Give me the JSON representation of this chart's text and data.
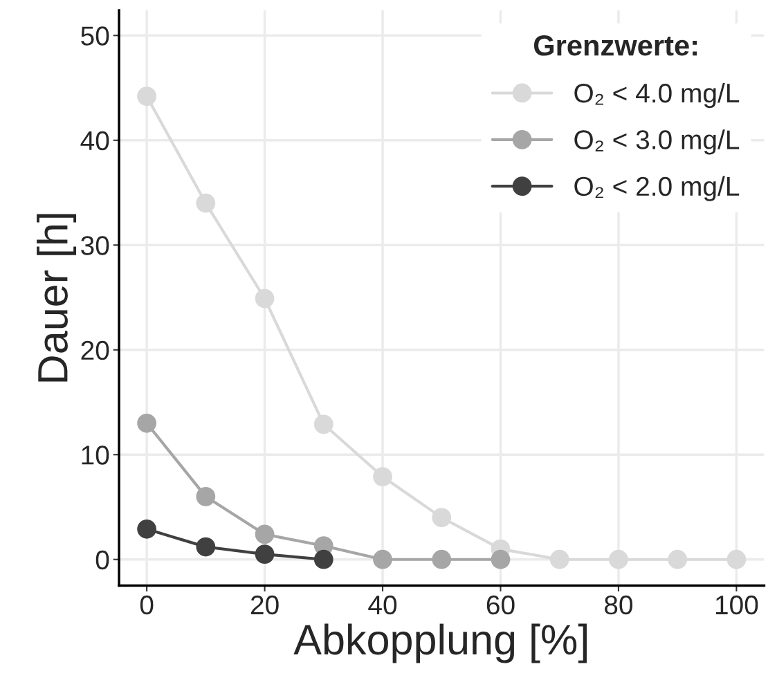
{
  "chart_data": {
    "type": "line",
    "xlabel": "Abkopplung [%]",
    "ylabel": "Dauer [h]",
    "legend_title": "Grenzwerte:",
    "xlim": [
      -4.7,
      104.7
    ],
    "xticks": [
      0,
      20,
      40,
      60,
      80,
      100
    ],
    "ylim": [
      -2.5,
      52.4
    ],
    "yticks": [
      0,
      10,
      20,
      30,
      40,
      50
    ],
    "grid": true,
    "legend": "top right",
    "marker": "circle",
    "line_style": "solid",
    "series": [
      {
        "name": "O₂ < 4.0 mg/L",
        "color": "#d9d9d9",
        "x": [
          0,
          10,
          20,
          30,
          40,
          50,
          60,
          70,
          80,
          90,
          100
        ],
        "values": [
          44.2,
          34.0,
          24.9,
          12.9,
          7.9,
          4.0,
          1.0,
          0,
          0,
          0,
          0
        ]
      },
      {
        "name": "O₂ < 3.0 mg/L",
        "color": "#a6a6a6",
        "x": [
          0,
          10,
          20,
          30,
          40,
          50,
          60
        ],
        "values": [
          13.0,
          6.0,
          2.4,
          1.3,
          0,
          0,
          0
        ]
      },
      {
        "name": "O₂ < 2.0 mg/L",
        "color": "#404040",
        "x": [
          0,
          10,
          20,
          30
        ],
        "values": [
          2.9,
          1.2,
          0.5,
          0
        ]
      }
    ]
  }
}
